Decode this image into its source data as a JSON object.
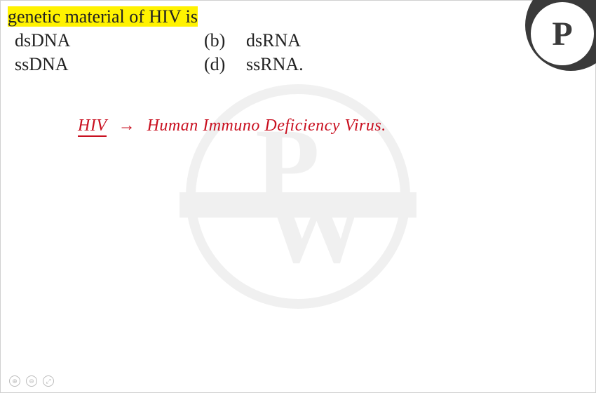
{
  "question": {
    "text_full": "genetic material of HIV is",
    "highlighted": true,
    "options": {
      "a": {
        "label": "",
        "text": "dsDNA"
      },
      "b": {
        "label": "(b)",
        "text": "dsRNA"
      },
      "c": {
        "label": "",
        "text": "ssDNA"
      },
      "d": {
        "label": "(d)",
        "text": "ssRNA."
      }
    }
  },
  "handwriting": {
    "term": "HIV",
    "arrow": "→",
    "expansion": "Human Immuno Deficiency Virus.",
    "color": "#c91020",
    "fontsize": 24
  },
  "watermark": {
    "letter1": "P",
    "letter2": "W",
    "color": "#888888",
    "opacity": 0.12
  },
  "corner_badge": {
    "letter": "P",
    "bg_color": "#3a3a3a",
    "inner_bg": "#ffffff"
  },
  "controls": {
    "icon1": "⊕",
    "icon2": "⊖",
    "icon3": "⤢"
  },
  "colors": {
    "highlight": "#fff200",
    "text": "#222222",
    "background": "#ffffff"
  }
}
